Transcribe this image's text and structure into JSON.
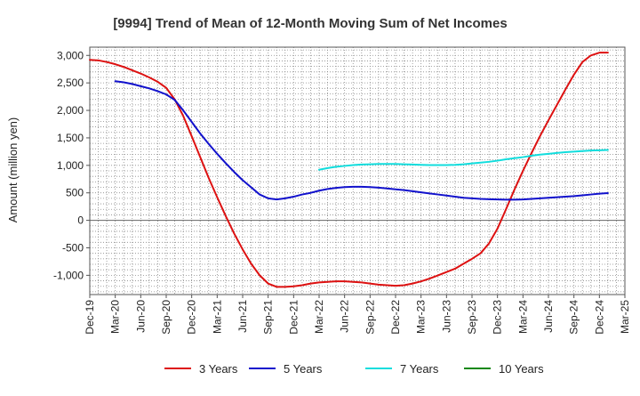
{
  "chart_data": {
    "type": "line",
    "title": "[9994]  Trend of Mean of 12-Month Moving Sum of Net Incomes",
    "xlabel": "",
    "ylabel": "Amount (million yen)",
    "ylim": [
      -1350,
      3150
    ],
    "yticks": [
      -1000,
      -500,
      0,
      500,
      1000,
      1500,
      2000,
      2500,
      3000
    ],
    "ytick_labels": [
      "-1,000",
      "-500",
      "0",
      "500",
      "1,000",
      "1,500",
      "2,000",
      "2,500",
      "3,000"
    ],
    "xlim": [
      "2019-12",
      "2025-03"
    ],
    "x_tick_labels": [
      "Dec-19",
      "Mar-20",
      "Jun-20",
      "Sep-20",
      "Dec-20",
      "Mar-21",
      "Jun-21",
      "Sep-21",
      "Dec-21",
      "Mar-22",
      "Jun-22",
      "Sep-22",
      "Dec-22",
      "Mar-23",
      "Jun-23",
      "Sep-23",
      "Dec-23",
      "Mar-24",
      "Jun-24",
      "Sep-24",
      "Dec-24",
      "Mar-25"
    ],
    "grid": true,
    "legend_position": "bottom",
    "series": [
      {
        "name": "3 Years",
        "color": "#dd1111",
        "points": [
          [
            "2019-12",
            2920
          ],
          [
            "2020-01",
            2910
          ],
          [
            "2020-02",
            2880
          ],
          [
            "2020-03",
            2840
          ],
          [
            "2020-04",
            2790
          ],
          [
            "2020-05",
            2730
          ],
          [
            "2020-06",
            2670
          ],
          [
            "2020-07",
            2600
          ],
          [
            "2020-08",
            2520
          ],
          [
            "2020-09",
            2410
          ],
          [
            "2020-10",
            2200
          ],
          [
            "2020-11",
            1900
          ],
          [
            "2020-12",
            1530
          ],
          [
            "2021-01",
            1150
          ],
          [
            "2021-02",
            770
          ],
          [
            "2021-03",
            420
          ],
          [
            "2021-04",
            80
          ],
          [
            "2021-05",
            -240
          ],
          [
            "2021-06",
            -530
          ],
          [
            "2021-07",
            -790
          ],
          [
            "2021-08",
            -1000
          ],
          [
            "2021-09",
            -1150
          ],
          [
            "2021-10",
            -1210
          ],
          [
            "2021-11",
            -1210
          ],
          [
            "2021-12",
            -1200
          ],
          [
            "2022-01",
            -1180
          ],
          [
            "2022-02",
            -1150
          ],
          [
            "2022-03",
            -1130
          ],
          [
            "2022-04",
            -1120
          ],
          [
            "2022-05",
            -1110
          ],
          [
            "2022-06",
            -1110
          ],
          [
            "2022-07",
            -1120
          ],
          [
            "2022-08",
            -1130
          ],
          [
            "2022-09",
            -1150
          ],
          [
            "2022-10",
            -1170
          ],
          [
            "2022-11",
            -1180
          ],
          [
            "2022-12",
            -1190
          ],
          [
            "2023-01",
            -1180
          ],
          [
            "2023-02",
            -1150
          ],
          [
            "2023-03",
            -1110
          ],
          [
            "2023-04",
            -1060
          ],
          [
            "2023-05",
            -1000
          ],
          [
            "2023-06",
            -940
          ],
          [
            "2023-07",
            -880
          ],
          [
            "2023-08",
            -790
          ],
          [
            "2023-09",
            -700
          ],
          [
            "2023-10",
            -600
          ],
          [
            "2023-11",
            -420
          ],
          [
            "2023-12",
            -150
          ],
          [
            "2024-01",
            200
          ],
          [
            "2024-02",
            560
          ],
          [
            "2024-03",
            900
          ],
          [
            "2024-04",
            1220
          ],
          [
            "2024-05",
            1530
          ],
          [
            "2024-06",
            1820
          ],
          [
            "2024-07",
            2100
          ],
          [
            "2024-08",
            2380
          ],
          [
            "2024-09",
            2650
          ],
          [
            "2024-10",
            2880
          ],
          [
            "2024-11",
            3000
          ],
          [
            "2024-12",
            3050
          ],
          [
            "2025-01",
            3050
          ]
        ]
      },
      {
        "name": "5 Years",
        "color": "#1111cc",
        "points": [
          [
            "2020-03",
            2530
          ],
          [
            "2020-04",
            2510
          ],
          [
            "2020-05",
            2480
          ],
          [
            "2020-06",
            2440
          ],
          [
            "2020-07",
            2400
          ],
          [
            "2020-08",
            2350
          ],
          [
            "2020-09",
            2290
          ],
          [
            "2020-10",
            2190
          ],
          [
            "2020-11",
            2000
          ],
          [
            "2020-12",
            1790
          ],
          [
            "2021-01",
            1580
          ],
          [
            "2021-02",
            1390
          ],
          [
            "2021-03",
            1210
          ],
          [
            "2021-04",
            1040
          ],
          [
            "2021-05",
            880
          ],
          [
            "2021-06",
            730
          ],
          [
            "2021-07",
            600
          ],
          [
            "2021-08",
            470
          ],
          [
            "2021-09",
            400
          ],
          [
            "2021-10",
            380
          ],
          [
            "2021-11",
            400
          ],
          [
            "2021-12",
            430
          ],
          [
            "2022-01",
            470
          ],
          [
            "2022-02",
            500
          ],
          [
            "2022-03",
            540
          ],
          [
            "2022-04",
            570
          ],
          [
            "2022-05",
            590
          ],
          [
            "2022-06",
            605
          ],
          [
            "2022-07",
            610
          ],
          [
            "2022-08",
            610
          ],
          [
            "2022-09",
            605
          ],
          [
            "2022-10",
            595
          ],
          [
            "2022-11",
            580
          ],
          [
            "2022-12",
            565
          ],
          [
            "2023-01",
            550
          ],
          [
            "2023-02",
            530
          ],
          [
            "2023-03",
            510
          ],
          [
            "2023-04",
            490
          ],
          [
            "2023-05",
            470
          ],
          [
            "2023-06",
            450
          ],
          [
            "2023-07",
            430
          ],
          [
            "2023-08",
            410
          ],
          [
            "2023-09",
            400
          ],
          [
            "2023-10",
            390
          ],
          [
            "2023-11",
            385
          ],
          [
            "2023-12",
            380
          ],
          [
            "2024-01",
            375
          ],
          [
            "2024-02",
            375
          ],
          [
            "2024-03",
            380
          ],
          [
            "2024-04",
            390
          ],
          [
            "2024-05",
            400
          ],
          [
            "2024-06",
            410
          ],
          [
            "2024-07",
            420
          ],
          [
            "2024-08",
            430
          ],
          [
            "2024-09",
            440
          ],
          [
            "2024-10",
            455
          ],
          [
            "2024-11",
            470
          ],
          [
            "2024-12",
            485
          ],
          [
            "2025-01",
            495
          ]
        ]
      },
      {
        "name": "7 Years",
        "color": "#11dddd",
        "points": [
          [
            "2022-03",
            920
          ],
          [
            "2022-04",
            950
          ],
          [
            "2022-05",
            975
          ],
          [
            "2022-06",
            990
          ],
          [
            "2022-07",
            1005
          ],
          [
            "2022-08",
            1015
          ],
          [
            "2022-09",
            1020
          ],
          [
            "2022-10",
            1025
          ],
          [
            "2022-11",
            1025
          ],
          [
            "2022-12",
            1025
          ],
          [
            "2023-01",
            1020
          ],
          [
            "2023-02",
            1015
          ],
          [
            "2023-03",
            1010
          ],
          [
            "2023-04",
            1005
          ],
          [
            "2023-05",
            1005
          ],
          [
            "2023-06",
            1005
          ],
          [
            "2023-07",
            1010
          ],
          [
            "2023-08",
            1020
          ],
          [
            "2023-09",
            1035
          ],
          [
            "2023-10",
            1050
          ],
          [
            "2023-11",
            1065
          ],
          [
            "2023-12",
            1085
          ],
          [
            "2024-01",
            1110
          ],
          [
            "2024-02",
            1130
          ],
          [
            "2024-03",
            1150
          ],
          [
            "2024-04",
            1175
          ],
          [
            "2024-05",
            1195
          ],
          [
            "2024-06",
            1210
          ],
          [
            "2024-07",
            1225
          ],
          [
            "2024-08",
            1240
          ],
          [
            "2024-09",
            1250
          ],
          [
            "2024-10",
            1260
          ],
          [
            "2024-11",
            1270
          ],
          [
            "2024-12",
            1275
          ],
          [
            "2025-01",
            1280
          ]
        ]
      },
      {
        "name": "10 Years",
        "color": "#118811",
        "points": []
      }
    ]
  }
}
